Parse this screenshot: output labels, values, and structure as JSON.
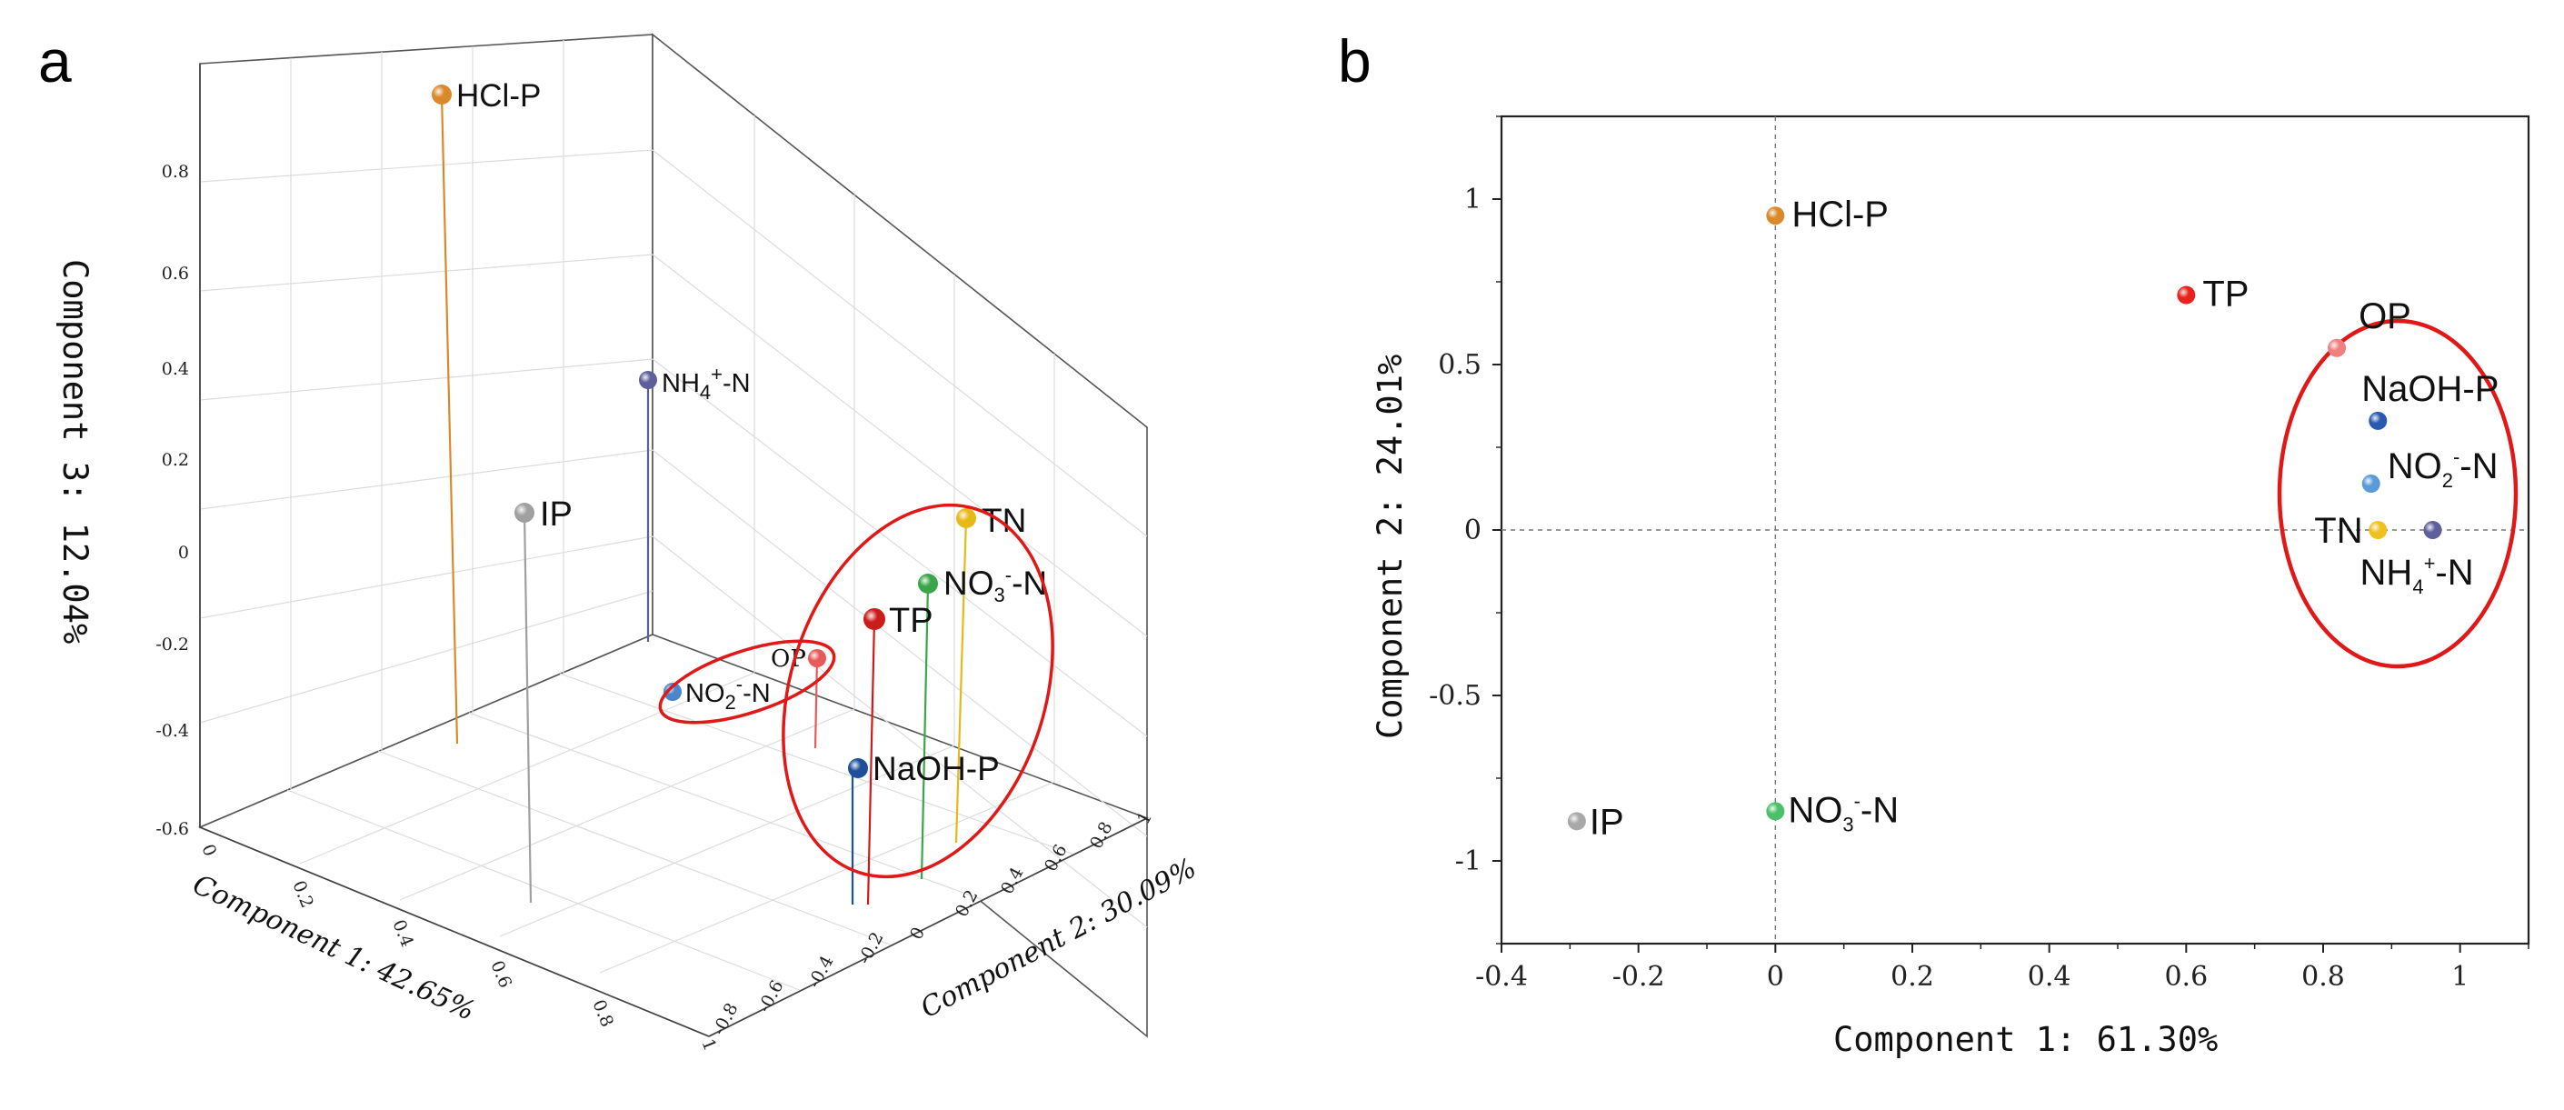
{
  "panels": {
    "a": "a",
    "b": "b"
  },
  "chart_data": [
    {
      "type": "scatter",
      "title": "a",
      "xlabel": "Component 1: 42.65%",
      "ylabel": "Component 2: 30.09%",
      "zlabel": "Component 3: 12.04%",
      "x_ticks": [
        "0",
        "0.2",
        "0.4",
        "0.6",
        "0.8",
        "1"
      ],
      "y_ticks": [
        "-0.8",
        "-0.6",
        "-0.4",
        "-0.2",
        "0",
        "0.2",
        "0.4",
        "0.6",
        "0.8",
        "1"
      ],
      "z_ticks": [
        "-0.6",
        "-0.4",
        "-0.2",
        "0",
        "0.2",
        "0.4",
        "0.6",
        "0.8"
      ],
      "points": [
        {
          "label": "HCl-P",
          "x": 0.2,
          "y": -0.6,
          "z": 0.88,
          "color": "#d9882a"
        },
        {
          "label": "NH4+-N",
          "x": 0.2,
          "y": 0.6,
          "z": 0.48,
          "color": "#5c5f9a"
        },
        {
          "label": "IP",
          "x": 0.55,
          "y": -0.8,
          "z": 0.08,
          "color": "#a0a0a0"
        },
        {
          "label": "TN",
          "x": 0.85,
          "y": 0.85,
          "z": 0.02,
          "color": "#e6b818"
        },
        {
          "label": "NO3--N",
          "x": 0.85,
          "y": 0.5,
          "z": -0.06,
          "color": "#3aa64a"
        },
        {
          "label": "TP",
          "x": 0.9,
          "y": 0.4,
          "z": -0.15,
          "color": "#cc1b1b"
        },
        {
          "label": "OP",
          "x": 0.55,
          "y": 0.6,
          "z": -0.29,
          "color": "#e85a5a"
        },
        {
          "label": "NO2--N",
          "x": 0.3,
          "y": 0.4,
          "z": -0.4,
          "color": "#4a86c8"
        },
        {
          "label": "NaOH-P",
          "x": 1.0,
          "y": 0.1,
          "z": -0.43,
          "color": "#1f4f9a"
        }
      ],
      "point_text": {
        "HCl-P": "HCl-P",
        "NH4": "NH",
        "NH4_sub": "4",
        "NH4_sup": "+",
        "NH4_tail": "-N",
        "IP": "IP",
        "TN": "TN",
        "NO3": "NO",
        "NO3_sub": "3",
        "NO3_sup": "-",
        "NO3_tail": "-N",
        "TP": "TP",
        "OP": "OP",
        "NO2": "NO",
        "NO2_sub": "2",
        "NO2_sup": "-",
        "NO2_tail": "-N",
        "NaOH-P": "NaOH-P"
      }
    },
    {
      "type": "scatter",
      "title": "b",
      "xlabel": "Component 1: 61.30%",
      "ylabel": "Component 2: 24.01%",
      "xlim": [
        -0.4,
        1.1
      ],
      "ylim": [
        -1.25,
        1.25
      ],
      "x_ticks": [
        "-0.4",
        "-0.2",
        "0",
        "0.2",
        "0.4",
        "0.6",
        "0.8",
        "1"
      ],
      "y_ticks": [
        "1",
        "0.5",
        "0",
        "-0.5",
        "-1"
      ],
      "points": [
        {
          "label": "HCl-P",
          "x": 0.0,
          "y": 0.95,
          "color": "#d9882a"
        },
        {
          "label": "TP",
          "x": 0.6,
          "y": 0.71,
          "color": "#e8231e"
        },
        {
          "label": "OP",
          "x": 0.82,
          "y": 0.55,
          "color": "#f08080"
        },
        {
          "label": "NaOH-P",
          "x": 0.88,
          "y": 0.33,
          "color": "#2a5ab0"
        },
        {
          "label": "NO2--N",
          "x": 0.87,
          "y": 0.14,
          "color": "#5a9ad8"
        },
        {
          "label": "TN",
          "x": 0.88,
          "y": 0.0,
          "color": "#f0c020"
        },
        {
          "label": "NH4+-N",
          "x": 0.96,
          "y": 0.0,
          "color": "#5c5f9a"
        },
        {
          "label": "NO3--N",
          "x": 0.0,
          "y": -0.85,
          "color": "#4ac06a"
        },
        {
          "label": "IP",
          "x": -0.29,
          "y": -0.88,
          "color": "#a8a8a8"
        }
      ],
      "point_text": {
        "HCl-P": "HCl-P",
        "TP": "TP",
        "OP": "OP",
        "NaOH-P": "NaOH-P",
        "NO2": "NO",
        "NO2_sub": "2",
        "NO2_sup": "-",
        "NO2_tail": "-N",
        "TN": "TN",
        "NH4": "NH",
        "NH4_sub": "4",
        "NH4_sup": "+",
        "NH4_tail": "-N",
        "NO3": "NO",
        "NO3_sub": "3",
        "NO3_sup": "-",
        "NO3_tail": "-N",
        "IP": "IP"
      },
      "annotations": "red ellipse around OP, NaOH-P, NO2--N, TN, NH4+-N"
    }
  ]
}
